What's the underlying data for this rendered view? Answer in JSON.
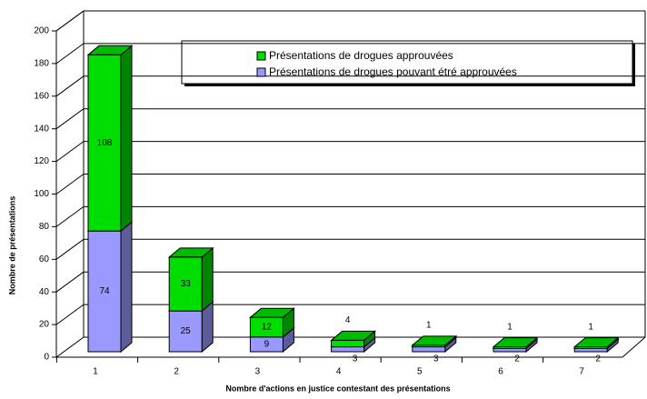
{
  "chart_data": {
    "type": "bar3d_stacked",
    "xlabel": "Nombre d'actions en justice contestant des présentations",
    "ylabel": "Nombre de présentations",
    "categories": [
      "1",
      "2",
      "3",
      "4",
      "5",
      "6",
      "7"
    ],
    "series": [
      {
        "name": "Présentations de drogues pouvant étré approuvées",
        "color": "#9999ff",
        "values": [
          74,
          25,
          9,
          3,
          3,
          2,
          2
        ]
      },
      {
        "name": "Présentations de drogues approuvées",
        "color": "#00dd00",
        "values": [
          108,
          33,
          12,
          4,
          1,
          1,
          1
        ]
      }
    ],
    "ylim": [
      0,
      200
    ],
    "yticks": [
      0,
      20,
      40,
      60,
      80,
      100,
      120,
      140,
      160,
      180,
      200
    ],
    "grid": true
  }
}
